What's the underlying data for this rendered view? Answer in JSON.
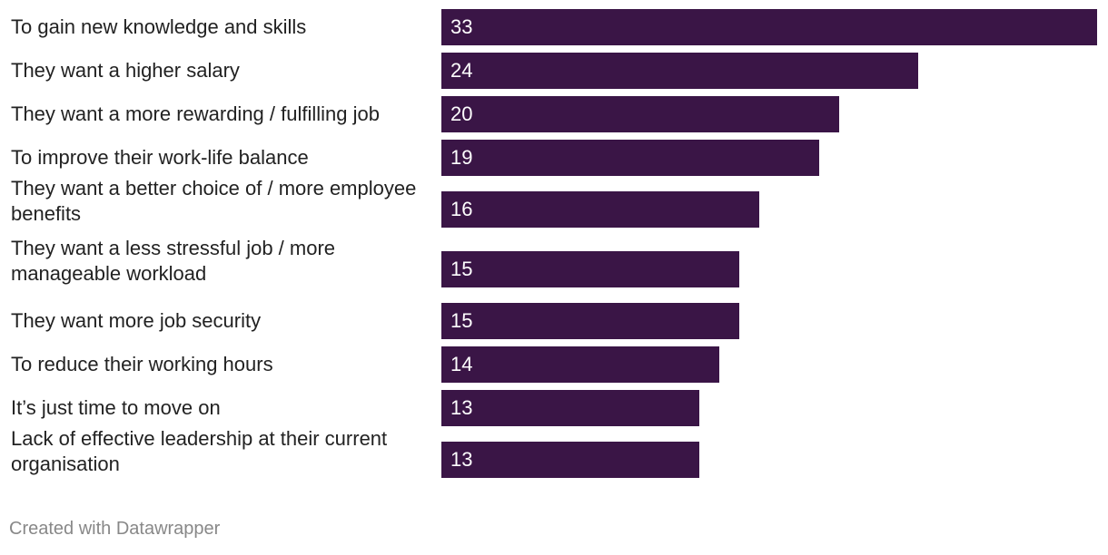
{
  "chart_data": {
    "type": "bar",
    "orientation": "horizontal",
    "categories": [
      "To gain new knowledge and skills",
      "They want a higher salary",
      "They want a more rewarding / fulfilling job",
      "To improve their work-life balance",
      "They want a better choice of / more employee benefits",
      "They want a less stressful job / more manageable workload",
      "They want more job security",
      "To reduce their working hours",
      "It’s just time to move on",
      "Lack of effective leadership at their current organisation"
    ],
    "values": [
      33,
      24,
      20,
      19,
      16,
      15,
      15,
      14,
      13,
      13
    ],
    "xlim": [
      0,
      33
    ],
    "bar_color": "#3a1546",
    "value_label_color": "#ffffff",
    "grid": false
  },
  "footer": {
    "credit": "Created with Datawrapper"
  }
}
